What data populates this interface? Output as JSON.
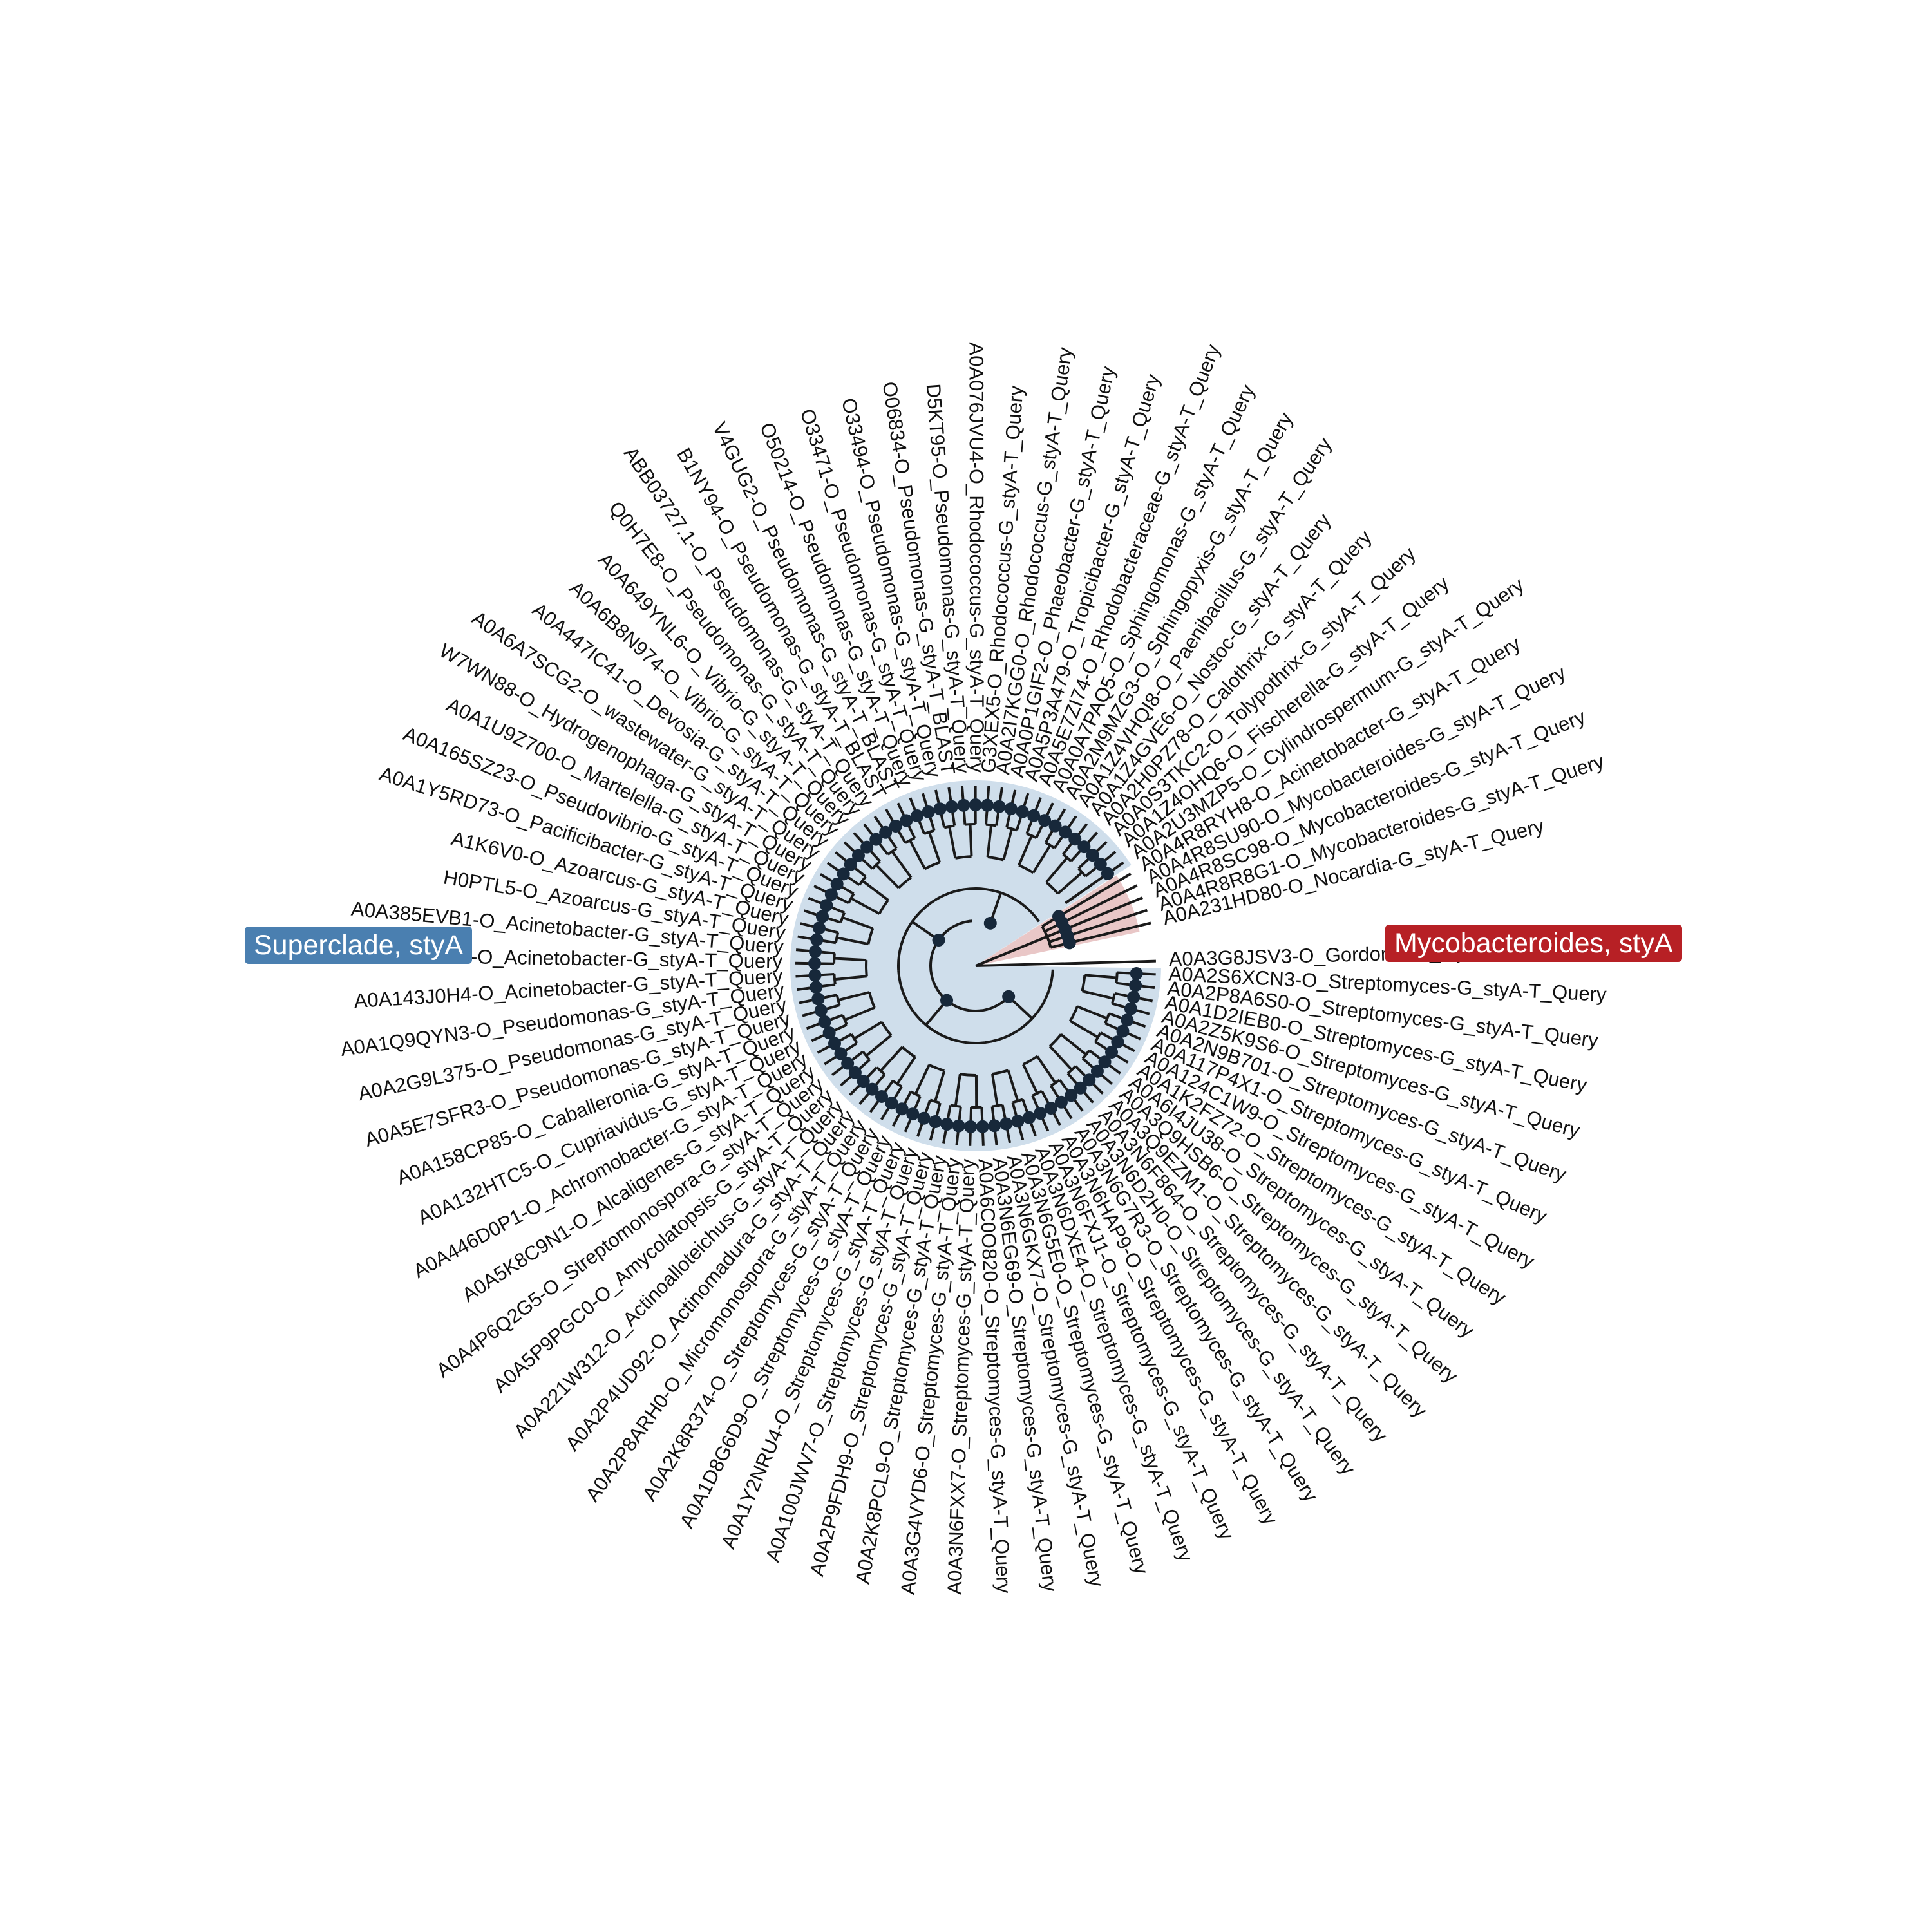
{
  "colors": {
    "superclade_fill": "#cfdeeb",
    "superclade_label_bg": "#4a7fb0",
    "myco_fill": "#e9c7c7",
    "myco_label_bg": "#b72025",
    "branch": "#1a1a1a",
    "node": "#17283a"
  },
  "clades": {
    "superclade": "Superclade, styA",
    "mycobacteroides": "Mycobacteroides, styA"
  },
  "tips": [
    "A0A3G8JSV3-O_Gordonia-G_styA-T_Query",
    "A0A2S6XCN3-O_Streptomyces-G_styA-T_Query",
    "A0A2P8A6S0-O_Streptomyces-G_styA-T_Query",
    "A0A1D2IEB0-O_Streptomyces-G_styA-T_Query",
    "A0A2Z5K9S6-O_Streptomyces-G_styA-T_Query",
    "A0A2N9B701-O_Streptomyces-G_styA-T_Query",
    "A0A117P4X1-O_Streptomyces-G_styA-T_Query",
    "A0A124C1W9-O_Streptomyces-G_styA-T_Query",
    "A0A1K2FZ72-O_Streptomyces-G_styA-T_Query",
    "A0A6I4JU38-O_Streptomyces-G_styA-T_Query",
    "A0A3Q9HSB6-O_Streptomyces-G_styA-T_Query",
    "A0A3Q9EZM1-O_Streptomyces-G_styA-T_Query",
    "A0A3N6F864-O_Streptomyces-G_styA-T_Query",
    "A0A3N6D2H0-O_Streptomyces-G_styA-T_Query",
    "A0A3N6G7R3-O_Streptomyces-G_styA-T_Query",
    "A0A3N6HAP9-O_Streptomyces-G_styA-T_Query",
    "A0A3N6FXJ1-O_Streptomyces-G_styA-T_Query",
    "A0A3N6DXE4-O_Streptomyces-G_styA-T_Query",
    "A0A3N6G5E0-O_Streptomyces-G_styA-T_Query",
    "A0A3N6GKX7-O_Streptomyces-G_styA-T_Query",
    "A0A3N6EG69-O_Streptomyces-G_styA-T_Query",
    "A0A6C0O820-O_Streptomyces-G_styA-T_Query",
    "A0A3N6FXX7-O_Streptomyces-G_styA-T_Query",
    "A0A3G4VYD6-O_Streptomyces-G_styA-T_Query",
    "A0A2K8PCL9-O_Streptomyces-G_styA-T_Query",
    "A0A2P9FDH9-O_Streptomyces-G_styA-T_Query",
    "A0A100JWV7-O_Streptomyces-G_styA-T_Query",
    "A0A1Y2NRU4-O_Streptomyces-G_styA-T_Query",
    "A0A1D8G6D9-O_Streptomyces-G_styA-T_Query",
    "A0A2K8R374-O_Streptomyces-G_styA-T_Query",
    "A0A2P8ARH0-O_Micromonospora-G_styA-T_Query",
    "A0A2P4UD92-O_Actinomadura-G_styA-T_Query",
    "A0A221W312-O_Actinoalloteichus-G_styA-T_Query",
    "A0A5P9PGC0-O_Amycolatopsis-G_styA-T_Query",
    "A0A4P6Q2G5-O_Streptomonospora-G_styA-T_Query",
    "A0A5K8C9N1-O_Alcaligenes-G_styA-T_Query",
    "A0A446D0P1-O_Achromobacter-G_styA-T_Query",
    "A0A132HTC5-O_Cupriavidus-G_styA-T_Query",
    "A0A158CP85-O_Caballeronia-G_styA-T_Query",
    "A0A5E7SFR3-O_Pseudomonas-G_styA-T_Query",
    "A0A2G9L375-O_Pseudomonas-G_styA-T_Query",
    "A0A1Q9QYN3-O_Pseudomonas-G_styA-T_Query",
    "A0A143J0H4-O_Acinetobacter-G_styA-T_Query",
    "A0A385EVB1-O_Acinetobacter-G_styA-T_Query",
    "A0A385EVB1-O_Acinetobacter-G_styA-T_Query",
    "H0PTL5-O_Azoarcus-G_styA-T_Query",
    "A1K6V0-O_Azoarcus-G_styA-T_Query",
    "A0A1Y5RD73-O_Pacificibacter-G_styA-T_Query",
    "A0A165SZ23-O_Pseudovibrio-G_styA-T_Query",
    "A0A1U9Z700-O_Martelella-G_styA-T_Query",
    "W7WN88-O_Hydrogenophaga-G_styA-T_Query",
    "A0A6A7SCG2-O_wastewater-G_styA-T_Query",
    "A0A447IC41-O_Devosia-G_styA-T_Query",
    "A0A6B8N974-O_Vibrio-G_styA-T_Query",
    "A0A649YNL6-O_Vibrio-G_styA-T_Query",
    "Q0H7E8-O_Pseudomonas-G_styA-T_Query",
    "ABB03727.1-O_Pseudomonas-G_styA-T_Query",
    "B1NY94-O_Pseudomonas-G_styA-T_BLAST",
    "V4GUG2-O_Pseudomonas-G_styA-T_BLAST",
    "O50214-O_Pseudomonas-G_styA-T_Query",
    "O33471-O_Pseudomonas-G_styA-T_Query",
    "O33494-O_Pseudomonas-G_styA-T_Query",
    "O06834-O_Pseudomonas-G_styA-T_BLAST",
    "D5KT95-O_Pseudomonas-G_styA-T_Query",
    "A0A076JVU4-O_Rhodococcus-G_styA-T_Query",
    "G3XEX5-O_Rhodococcus-G_styA-T_Query",
    "A0A2I7KGG0-O_Rhodococcus-G_styA-T_Query",
    "A0A0P1GIF2-O_Phaeobacter-G_styA-T_Query",
    "A0A5P3A479-O_Tropicibacter-G_styA-T_Query",
    "A0A5E7ZI74-O_Rhodobacteraceae-G_styA-T_Query",
    "A0A0A7PAQ5-O_Sphingomonas-G_styA-T_Query",
    "A0A2M9MZG3-O_Sphingopyxis-G_styA-T_Query",
    "A0A1Z4VHQI8-O_Paenibacillus-G_styA-T_Query",
    "A0A1Z4GVE6-O_Nostoc-G_styA-T_Query",
    "A0A2H0PZ78-O_Calothrix-G_styA-T_Query",
    "A0A0S3TKC2-O_Tolypothrix-G_styA-T_Query",
    "A0A1Z4OHQ6-O_Fischerella-G_styA-T_Query",
    "A0A2U3MZP5-O_Cylindrospermum-G_styA-T_Query",
    "A0A4R8RYH8-O_Acinetobacter-G_styA-T_Query",
    "A0A4R8SU90-O_Mycobacteroides-G_styA-T_Query",
    "A0A4R8SC98-O_Mycobacteroides-G_styA-T_Query",
    "A0A4R8R8G1-O_Mycobacteroides-G_styA-T_Query",
    "A0A231HD80-O_Nocardia-G_styA-T_Query"
  ]
}
